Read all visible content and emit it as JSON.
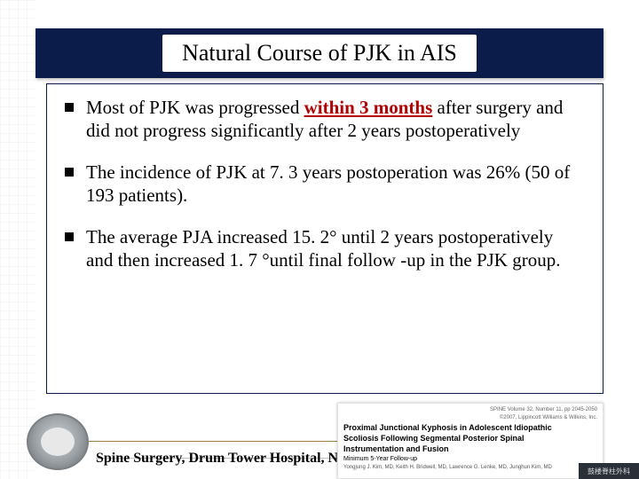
{
  "slide": {
    "title": "Natural Course of PJK in AIS",
    "bullets": [
      {
        "pre": "Most of  PJK was progressed ",
        "emph": "within 3 months",
        "post": " after surgery and did not progress significantly after 2  years postoperatively"
      },
      {
        "text": "The incidence of PJK at 7. 3 years postoperation was 26% (50 of 193 patients)."
      },
      {
        "text": "The average PJA increased 15. 2° until 2 years postoperatively and then increased 1. 7 °until final follow -up in the PJK group."
      }
    ],
    "footer": "Spine Surgery, Drum Tower Hospital, Nanjing University, CHINA",
    "citation": {
      "journal_line": "SPINE Volume 32, Number 11, pp 2045-2050",
      "journal_line2": "©2007, Lippincott Williams & Wilkins, Inc.",
      "paper_title": "Proximal Junctional Kyphosis in Adolescent Idiopathic",
      "paper_title2": "Scoliosis Following Segmental Posterior Spinal",
      "paper_title3": "Instrumentation and Fusion",
      "paper_sub": "Minimum 5-Year Follow-up",
      "authors": "Yongjung J. Kim, MD, Keith H. Bridwell, MD, Lawrence G. Lenke, MD, Junghun Kim, MD"
    },
    "bottom_tag": "鼓楼脊柱外科",
    "colors": {
      "title_bar_bg": "#0b1b4a",
      "emphasis": "#b00000",
      "footer_line": "#a08040"
    }
  }
}
